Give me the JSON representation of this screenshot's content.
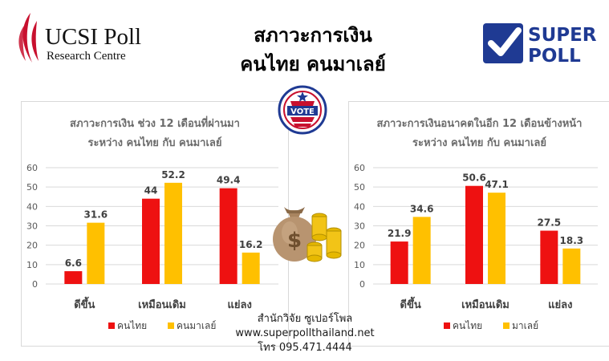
{
  "header": {
    "ucsi_name": "UCSI Poll",
    "ucsi_sub": "Research Centre",
    "title_line1": "สภาวะการเงิน",
    "title_line2": "คนไทย คนมาเลย์",
    "superpoll_line1": "SUPER",
    "superpoll_line2": "POLL",
    "vote_text": "VOTE"
  },
  "colors": {
    "thai": "#ee1111",
    "malay": "#ffc000",
    "brand_blue": "#1f3a93"
  },
  "icons": {
    "vote": "vote-badge-icon",
    "money": "money-bag-icon"
  },
  "footer": {
    "line1": "สำนักวิจัย ซูเปอร์โพล",
    "line2": "www.superpollthailand.net",
    "line3": "โทร 095.471.4444"
  },
  "chart_data": [
    {
      "type": "bar",
      "title": "สภาวะการเงิน ช่วง 12 เดือนที่ผ่านมา",
      "subtitle": "ระหว่าง คนไทย กับ คนมาเลย์",
      "categories": [
        "ดีขึ้น",
        "เหมือนเดิม",
        "แย่ลง"
      ],
      "series": [
        {
          "name": "คนไทย",
          "color": "#ee1111",
          "values": [
            6.6,
            44,
            49.4
          ]
        },
        {
          "name": "คนมาเลย์",
          "color": "#ffc000",
          "values": [
            31.6,
            52.2,
            16.2
          ]
        }
      ],
      "ylim": [
        0,
        60
      ],
      "yticks": [
        0,
        10,
        20,
        30,
        40,
        50,
        60
      ],
      "grid": true,
      "legend": "bottom"
    },
    {
      "type": "bar",
      "title": "สภาวะการเงินอนาคตในอีก 12 เดือนข้างหน้า",
      "subtitle": "ระหว่าง คนไทย กับ คนมาเลย์",
      "categories": [
        "ดีขึ้น",
        "เหมือนเดิม",
        "แย่ลง"
      ],
      "series": [
        {
          "name": "คนไทย",
          "color": "#ee1111",
          "values": [
            21.9,
            50.6,
            27.5
          ]
        },
        {
          "name": "มาเลย์",
          "color": "#ffc000",
          "values": [
            34.6,
            47.1,
            18.3
          ]
        }
      ],
      "ylim": [
        0,
        60
      ],
      "yticks": [
        0,
        10,
        20,
        30,
        40,
        50,
        60
      ],
      "grid": true,
      "legend": "bottom"
    }
  ]
}
